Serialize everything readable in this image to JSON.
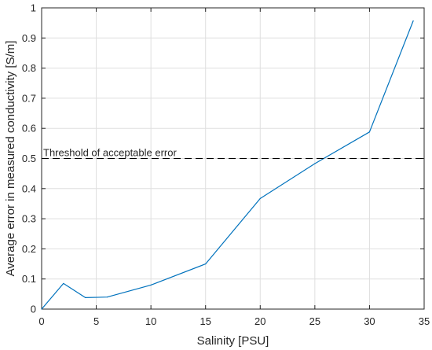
{
  "chart_data": {
    "type": "line",
    "title": "",
    "xlabel": "Salinity [PSU]",
    "ylabel": "Average error in measured conductivity [S/m]",
    "xlim": [
      0,
      35
    ],
    "ylim": [
      0,
      1
    ],
    "x_ticks": [
      0,
      5,
      10,
      15,
      20,
      25,
      30,
      35
    ],
    "y_ticks": [
      0,
      0.1,
      0.2,
      0.3,
      0.4,
      0.5,
      0.6,
      0.7,
      0.8,
      0.9,
      1
    ],
    "grid": true,
    "legend": "none",
    "series": [
      {
        "color": "#0072bd",
        "x": [
          0,
          2,
          4,
          6,
          10,
          15,
          20,
          25,
          30,
          34
        ],
        "y": [
          0.0,
          0.085,
          0.038,
          0.04,
          0.08,
          0.15,
          0.367,
          0.483,
          0.588,
          0.957
        ]
      }
    ],
    "annotations": [
      {
        "type": "hline",
        "y": 0.5,
        "style": "dashed",
        "color": "#000000",
        "label": "Threshold of acceptable error"
      }
    ]
  }
}
